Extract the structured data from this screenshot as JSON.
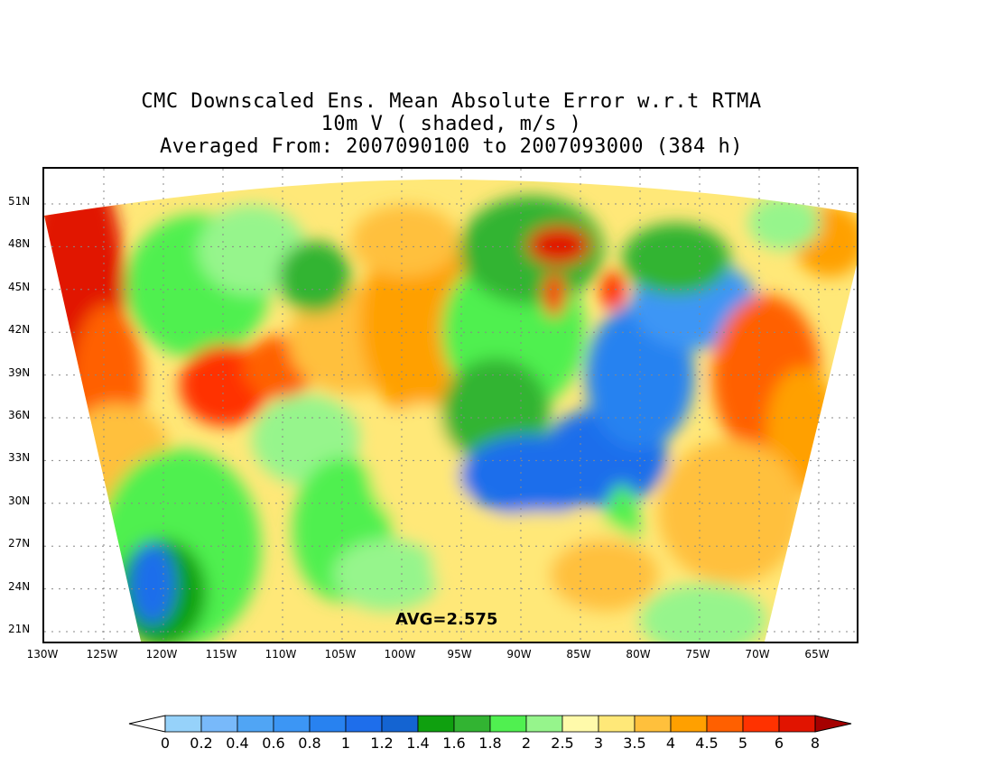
{
  "title": {
    "line1": "CMC Downscaled Ens. Mean Absolute Error w.r.t RTMA",
    "line2": "10m V ( shaded, m/s )",
    "line3": "Averaged From: 2007090100 to 2007093000 (384 h)"
  },
  "avg_label": "AVG=2.575",
  "lat_labels": [
    "51N",
    "48N",
    "45N",
    "42N",
    "39N",
    "36N",
    "33N",
    "30N",
    "27N",
    "24N",
    "21N"
  ],
  "lon_labels": [
    "130W",
    "125W",
    "120W",
    "115W",
    "110W",
    "105W",
    "100W",
    "95W",
    "90W",
    "85W",
    "80W",
    "75W",
    "70W",
    "65W"
  ],
  "colorbar": {
    "labels": [
      "0",
      "0.2",
      "0.4",
      "0.6",
      "0.8",
      "1",
      "1.2",
      "1.4",
      "1.6",
      "1.8",
      "2",
      "2.5",
      "3",
      "3.5",
      "4",
      "4.5",
      "5",
      "6",
      "8"
    ],
    "colors": [
      "#96d2fa",
      "#78b9fa",
      "#50a5f5",
      "#3c96f5",
      "#2882f0",
      "#1e6eeb",
      "#1464d2",
      "#0fa00f",
      "#32b432",
      "#50f050",
      "#96f58c",
      "#fffaaa",
      "#ffe878",
      "#ffc03c",
      "#ffa000",
      "#ff6000",
      "#ff3200",
      "#e11400",
      "#a50000"
    ],
    "under_color": "#ffffff",
    "over_color": "#a50000"
  }
}
